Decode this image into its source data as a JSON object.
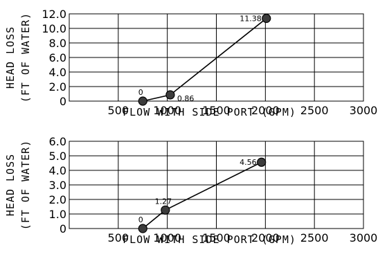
{
  "chart_data": [
    {
      "type": "line",
      "xlabel": "FLOW WITH SIDE PORT (GPM)",
      "ylabel_line1": "HEAD LOSS",
      "ylabel_line2": "(FT OF WATER)",
      "xlim": [
        0,
        3000
      ],
      "ylim": [
        0,
        12
      ],
      "xticks": [
        0,
        500,
        1000,
        1500,
        2000,
        2500,
        3000
      ],
      "xtick_labels": [
        "",
        "500",
        "1000",
        "1500",
        "2000",
        "2500",
        "3000"
      ],
      "yticks": [
        0,
        2,
        4,
        6,
        8,
        10,
        12
      ],
      "ytick_labels": [
        "0",
        "2.0",
        "4.0",
        "6.0",
        "8.0",
        "10.0",
        "12.0"
      ],
      "grid": true,
      "series": [
        {
          "x": [
            750,
            1030,
            2010
          ],
          "y": [
            0,
            0.86,
            11.38
          ],
          "labels": [
            "0",
            "0.86",
            "11.38"
          ],
          "label_pos": [
            "above-left",
            "right",
            "left"
          ]
        }
      ]
    },
    {
      "type": "line",
      "xlabel": "FLOW WITH SIDE PORT (GPM)",
      "ylabel_line1": "HEAD LOSS",
      "ylabel_line2": "(FT OF WATER)",
      "xlim": [
        0,
        3000
      ],
      "ylim": [
        0,
        6
      ],
      "xticks": [
        0,
        500,
        1000,
        1500,
        2000,
        2500,
        3000
      ],
      "xtick_labels": [
        "",
        "500",
        "1000",
        "1500",
        "2000",
        "2500",
        "3000"
      ],
      "yticks": [
        0,
        1,
        2,
        3,
        4,
        5,
        6
      ],
      "ytick_labels": [
        "0",
        "1.0",
        "2.0",
        "3.0",
        "4.0",
        "5.0",
        "6.0"
      ],
      "grid": true,
      "series": [
        {
          "x": [
            750,
            980,
            1960
          ],
          "y": [
            0,
            1.27,
            4.56
          ],
          "labels": [
            "0",
            "1.27",
            "4.56"
          ],
          "label_pos": [
            "above-left",
            "above-left",
            "left"
          ]
        }
      ]
    }
  ]
}
